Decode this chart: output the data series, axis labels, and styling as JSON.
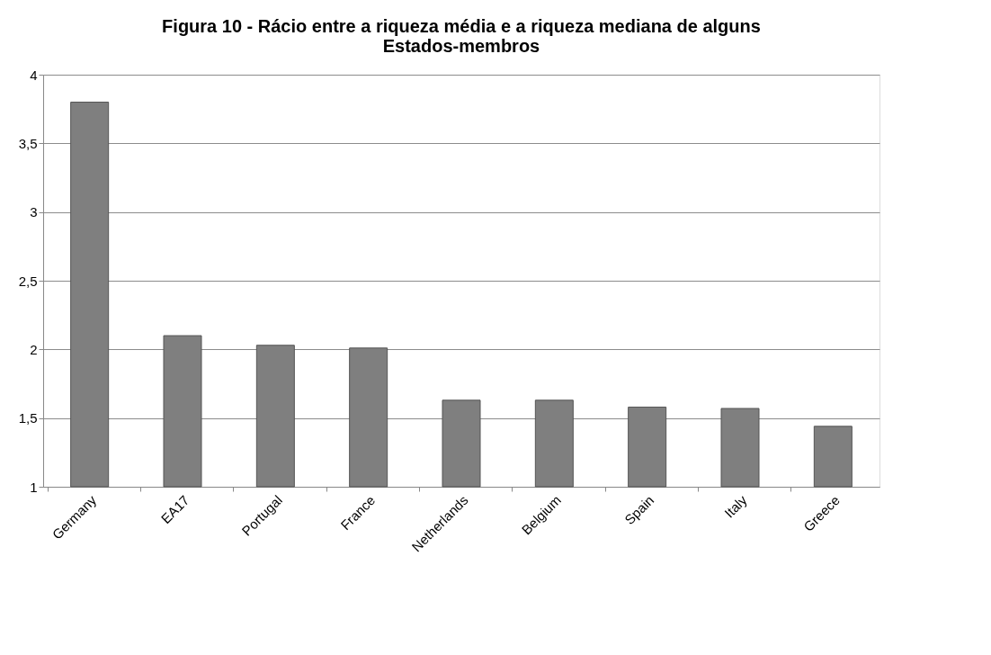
{
  "chart_data": {
    "type": "bar",
    "title": [
      "Figura 10 - Rácio entre a riqueza média e a riqueza mediana de alguns",
      "Estados-membros"
    ],
    "categories": [
      "Germany",
      "EA17",
      "Portugal",
      "France",
      "Netherlands",
      "Belgium",
      "Spain",
      "Italy",
      "Greece"
    ],
    "values": [
      3.8,
      2.1,
      2.03,
      2.01,
      1.63,
      1.63,
      1.58,
      1.57,
      1.44
    ],
    "color": "#7f7f7f",
    "ylim": [
      1,
      4
    ],
    "yticks": [
      1,
      {
        "value": 1.5,
        "label": "1,5"
      },
      2,
      {
        "value": 2.5,
        "label": "2,5"
      },
      3,
      {
        "value": 3.5,
        "label": "3,5"
      },
      4
    ],
    "grid": "y"
  }
}
